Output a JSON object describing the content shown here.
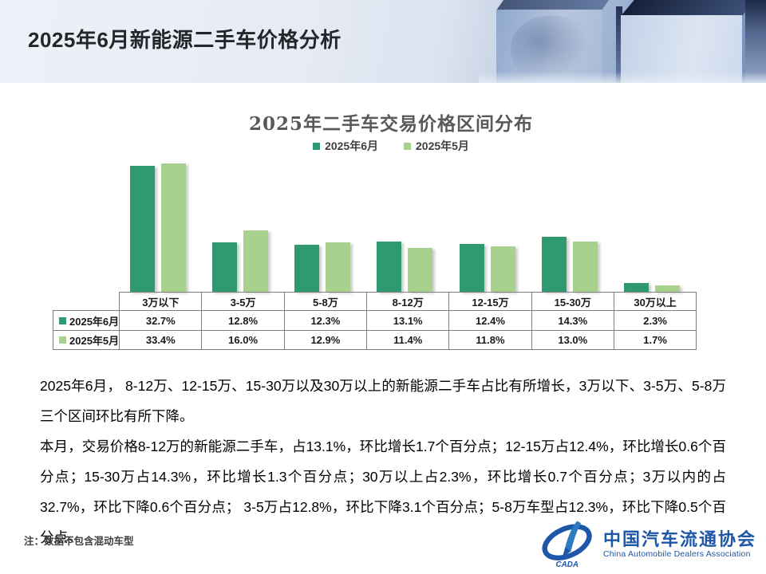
{
  "slide": {
    "title": "2025年6月新能源二手车价格分析",
    "note": "注：数据不包含混动车型"
  },
  "chart_data": {
    "type": "bar",
    "title": "2025年二手车交易价格区间分布",
    "categories": [
      "3万以下",
      "3-5万",
      "5-8万",
      "8-12万",
      "12-15万",
      "15-30万",
      "30万以上"
    ],
    "series": [
      {
        "name": "2025年6月",
        "color": "#2f9a70",
        "values": [
          32.7,
          12.8,
          12.3,
          13.1,
          12.4,
          14.3,
          2.3
        ]
      },
      {
        "name": "2025年5月",
        "color": "#a9d18e",
        "values": [
          33.4,
          16.0,
          12.9,
          11.4,
          11.8,
          13.0,
          1.7
        ]
      }
    ],
    "value_suffix": "%",
    "ylim": [
      0,
      35
    ],
    "grid": false,
    "legend_position": "top",
    "data_table_shown": true
  },
  "body": {
    "paragraphs": [
      "2025年6月， 8-12万、12-15万、15-30万以及30万以上的新能源二手车占比有所增长，3万以下、3-5万、5-8万三个区间环比有所下降。",
      "本月，交易价格8-12万的新能源二手车，占13.1%，环比增长1.7个百分点；12-15万占12.4%，环比增长0.6个百分点；15-30万占14.3%，环比增长1.3个百分点；30万以上占2.3%，环比增长0.7个百分点；3万以内的占32.7%，环比下降0.6个百分点； 3-5万占12.8%，环比下降3.1个百分点；5-8万车型占12.3%，环比下降0.5个百分点。"
    ]
  },
  "logo": {
    "org_cn": "中国汽车流通协会",
    "org_en": "China Automobile Dealers Association",
    "acronym": "CADA",
    "brand_color": "#1e56a8"
  }
}
